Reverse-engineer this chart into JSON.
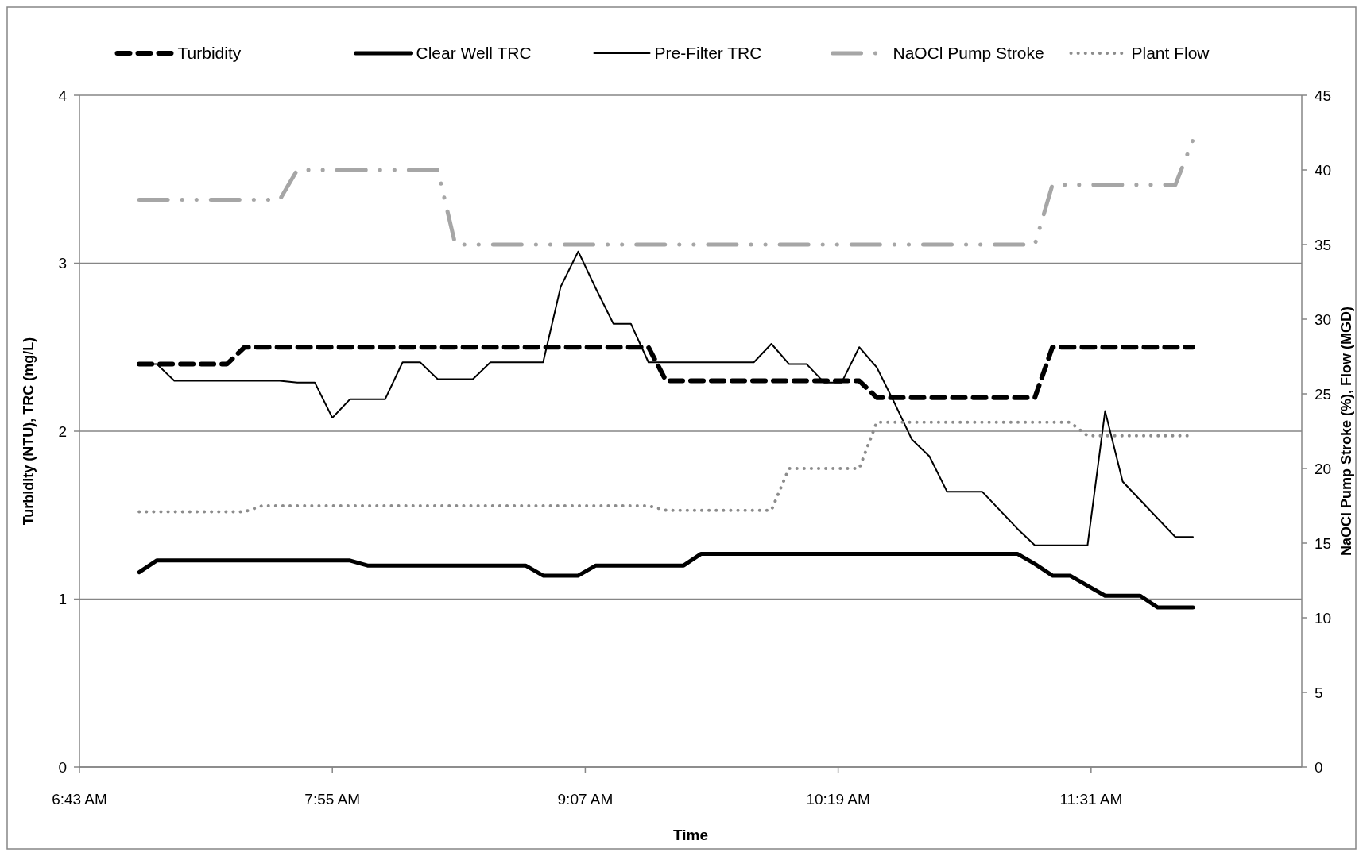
{
  "chart_data": {
    "type": "line",
    "xlabel": "Time",
    "ylabel": "Turbidity (NTU), TRC (mg/L)",
    "y2label": "NaOCl Pump Stroke (%), Flow (MGD)",
    "x": [
      7,
      7.0833,
      7.1667,
      7.25,
      7.3333,
      7.4167,
      7.5,
      7.5833,
      7.6667,
      7.75,
      7.8333,
      7.9167,
      8,
      8.0833,
      8.1667,
      8.25,
      8.3333,
      8.4167,
      8.5,
      8.5833,
      8.6667,
      8.75,
      8.8333,
      8.9167,
      9,
      9.0833,
      9.1667,
      9.25,
      9.3333,
      9.4167,
      9.5,
      9.5833,
      9.6667,
      9.75,
      9.8333,
      9.9167,
      10,
      10.0833,
      10.1667,
      10.25,
      10.3333,
      10.4167,
      10.5,
      10.5833,
      10.6667,
      10.75,
      10.8333,
      10.9167,
      11,
      11.0833,
      11.1667,
      11.25,
      11.3333,
      11.4167,
      11.5,
      11.5833,
      11.6667,
      11.75,
      11.8333,
      11.9167,
      12
    ],
    "xlim": [
      6.7167,
      12.5167
    ],
    "xticks": [
      {
        "value": 6.7167,
        "label": "6:43 AM"
      },
      {
        "value": 7.9167,
        "label": "7:55 AM"
      },
      {
        "value": 9.1167,
        "label": "9:07 AM"
      },
      {
        "value": 10.3167,
        "label": "10:19 AM"
      },
      {
        "value": 11.5167,
        "label": "11:31 AM"
      }
    ],
    "ylim": [
      0,
      4
    ],
    "yticks": [
      0,
      1,
      2,
      3,
      4
    ],
    "y2lim": [
      0,
      45
    ],
    "y2ticks": [
      0,
      5,
      10,
      15,
      20,
      25,
      30,
      35,
      40,
      45
    ],
    "grid": "y",
    "legend": "top",
    "series": [
      {
        "name": "Turbidity",
        "color": "#000000",
        "line_style": "dashed",
        "values": [
          2.4,
          2.4,
          2.4,
          2.4,
          2.4,
          2.4,
          2.5,
          2.5,
          2.5,
          2.5,
          2.5,
          2.5,
          2.5,
          2.5,
          2.5,
          2.5,
          2.5,
          2.5,
          2.5,
          2.5,
          2.5,
          2.5,
          2.5,
          2.5,
          2.5,
          2.5,
          2.5,
          2.5,
          2.5,
          2.5,
          2.3,
          2.3,
          2.3,
          2.3,
          2.3,
          2.3,
          2.3,
          2.3,
          2.3,
          2.3,
          2.3,
          2.3,
          2.2,
          2.2,
          2.2,
          2.2,
          2.2,
          2.2,
          2.2,
          2.2,
          2.2,
          2.2,
          2.5,
          2.5,
          2.5,
          2.5,
          2.5,
          2.5,
          2.5,
          2.5,
          2.5
        ]
      },
      {
        "name": "Clear Well TRC",
        "color": "#000000",
        "line_style": "solid",
        "values": [
          1.16,
          1.23,
          1.23,
          1.23,
          1.23,
          1.23,
          1.23,
          1.23,
          1.23,
          1.23,
          1.23,
          1.23,
          1.23,
          1.2,
          1.2,
          1.2,
          1.2,
          1.2,
          1.2,
          1.2,
          1.2,
          1.2,
          1.2,
          1.14,
          1.14,
          1.14,
          1.2,
          1.2,
          1.2,
          1.2,
          1.2,
          1.2,
          1.27,
          1.27,
          1.27,
          1.27,
          1.27,
          1.27,
          1.27,
          1.27,
          1.27,
          1.27,
          1.27,
          1.27,
          1.27,
          1.27,
          1.27,
          1.27,
          1.27,
          1.27,
          1.27,
          1.21,
          1.14,
          1.14,
          1.08,
          1.02,
          1.02,
          1.02,
          0.95,
          0.95,
          0.95
        ]
      },
      {
        "name": "Pre-Filter TRC",
        "color": "#000000",
        "line_style": "solid",
        "values": [
          2.4,
          2.4,
          2.3,
          2.3,
          2.3,
          2.3,
          2.3,
          2.3,
          2.3,
          2.29,
          2.29,
          2.08,
          2.19,
          2.19,
          2.19,
          2.41,
          2.41,
          2.31,
          2.31,
          2.31,
          2.41,
          2.41,
          2.41,
          2.41,
          2.86,
          3.07,
          2.85,
          2.64,
          2.64,
          2.41,
          2.41,
          2.41,
          2.41,
          2.41,
          2.41,
          2.41,
          2.52,
          2.4,
          2.4,
          2.29,
          2.29,
          2.5,
          2.38,
          2.17,
          1.95,
          1.85,
          1.64,
          1.64,
          1.64,
          1.53,
          1.42,
          1.32,
          1.32,
          1.32,
          1.32,
          2.12,
          1.7,
          1.59,
          1.48,
          1.37,
          1.37
        ]
      },
      {
        "name": "NaOCl Pump Stroke",
        "color": "#a6a6a6",
        "line_style": "dashdot",
        "axis": "y2",
        "values": [
          38,
          38,
          38,
          38,
          38,
          38,
          38,
          38,
          38,
          40,
          40,
          40,
          40,
          40,
          40,
          40,
          40,
          40,
          35,
          35,
          35,
          35,
          35,
          35,
          35,
          35,
          35,
          35,
          35,
          35,
          35,
          35,
          35,
          35,
          35,
          35,
          35,
          35,
          35,
          35,
          35,
          35,
          35,
          35,
          35,
          35,
          35,
          35,
          35,
          35,
          35,
          35,
          39,
          39,
          39,
          39,
          39,
          39,
          39,
          39,
          42
        ]
      },
      {
        "name": "Plant Flow",
        "color": "#8c8c8c",
        "line_style": "dotted",
        "axis": "y2",
        "values": [
          17.1,
          17.1,
          17.1,
          17.1,
          17.1,
          17.1,
          17.1,
          17.5,
          17.5,
          17.5,
          17.5,
          17.5,
          17.5,
          17.5,
          17.5,
          17.5,
          17.5,
          17.5,
          17.5,
          17.5,
          17.5,
          17.5,
          17.5,
          17.5,
          17.5,
          17.5,
          17.5,
          17.5,
          17.5,
          17.5,
          17.2,
          17.2,
          17.2,
          17.2,
          17.2,
          17.2,
          17.2,
          20,
          20,
          20,
          20,
          20,
          23.1,
          23.1,
          23.1,
          23.1,
          23.1,
          23.1,
          23.1,
          23.1,
          23.1,
          23.1,
          23.1,
          23.1,
          22.2,
          22.2,
          22.2,
          22.2,
          22.2,
          22.2,
          22.2
        ]
      }
    ]
  }
}
